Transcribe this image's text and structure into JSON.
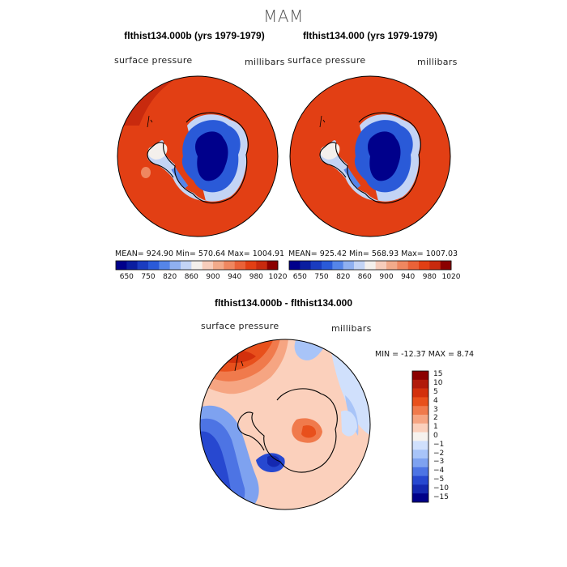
{
  "figure": {
    "title": "MAM"
  },
  "chart_data": [
    {
      "type": "heatmap",
      "title": "flthist134.000b (yrs 1979-1979)",
      "variable_label": "surface pressure",
      "units_label": "millibars",
      "stats": {
        "mean": "924.90",
        "min": "570.64",
        "max": "1004.91"
      },
      "stats_text": "MEAN= 924.90    Min= 570.64    Max= 1004.91",
      "colorbar_ticks": [
        "650",
        "750",
        "820",
        "860",
        "900",
        "940",
        "980",
        "1020"
      ]
    },
    {
      "type": "heatmap",
      "title": "flthist134.000 (yrs 1979-1979)",
      "variable_label": "surface pressure",
      "units_label": "millibars",
      "stats": {
        "mean": "925.42",
        "min": "568.93",
        "max": "1007.03"
      },
      "stats_text": "MEAN= 925.42    Min= 568.93    Max= 1007.03",
      "colorbar_ticks": [
        "650",
        "750",
        "820",
        "860",
        "900",
        "940",
        "980",
        "1020"
      ]
    },
    {
      "type": "heatmap",
      "title": "flthist134.000b - flthist134.000",
      "variable_label": "surface pressure",
      "units_label": "millibars",
      "stats": {
        "min": "-12.37",
        "max": "8.74"
      },
      "stats_text": "MIN = -12.37 MAX =    8.74",
      "colorbar_levels": [
        "15",
        "10",
        "5",
        "4",
        "3",
        "2",
        "1",
        "0",
        "−1",
        "−2",
        "−3",
        "−4",
        "−5",
        "−10",
        "−15"
      ]
    }
  ],
  "palettes": {
    "absolute": [
      "#00008b",
      "#0a1ea0",
      "#1a3cc0",
      "#2a5ad8",
      "#5585e8",
      "#8fb0f0",
      "#c3d4f5",
      "#f4f0ec",
      "#f7cdbb",
      "#f2aa8a",
      "#ef8760",
      "#ea6238",
      "#e23f14",
      "#c82a0e",
      "#8b0000"
    ],
    "diff": [
      "#8b0000",
      "#b11b0b",
      "#d3300c",
      "#e8501c",
      "#f07a4c",
      "#f6a582",
      "#fbd0bc",
      "#f6f2ee",
      "#d0e0fc",
      "#a8c4f8",
      "#7ea2f0",
      "#4d74e4",
      "#2748d0",
      "#1428b0",
      "#000088"
    ],
    "diff_order_note": "top to bottom of colorbar"
  }
}
